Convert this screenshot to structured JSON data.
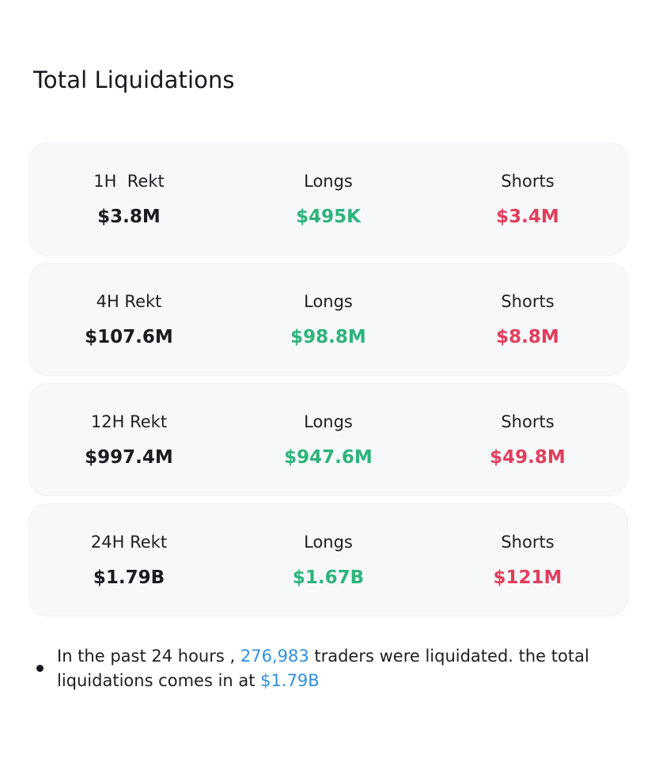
{
  "page": {
    "title": "Total Liquidations"
  },
  "cards": [
    {
      "rekt_label": "1H  Rekt",
      "rekt_value": "$3.8M",
      "longs_label": "Longs",
      "longs_value": "$495K",
      "shorts_label": "Shorts",
      "shorts_value": "$3.4M"
    },
    {
      "rekt_label": "4H Rekt",
      "rekt_value": "$107.6M",
      "longs_label": "Longs",
      "longs_value": "$98.8M",
      "shorts_label": "Shorts",
      "shorts_value": "$8.8M"
    },
    {
      "rekt_label": "12H Rekt",
      "rekt_value": "$997.4M",
      "longs_label": "Longs",
      "longs_value": "$947.6M",
      "shorts_label": "Shorts",
      "shorts_value": "$49.8M"
    },
    {
      "rekt_label": "24H Rekt",
      "rekt_value": "$1.79B",
      "longs_label": "Longs",
      "longs_value": "$1.67B",
      "shorts_label": "Shorts",
      "shorts_value": "$121M"
    }
  ],
  "summary": {
    "prefix": "In the past 24 hours , ",
    "traders_count": "276,983",
    "middle": " traders were liquidated. the total liquidations comes in at ",
    "total_amount": "$1.79B"
  },
  "colors": {
    "longs": "#2db47a",
    "shorts": "#e23e5c",
    "highlight": "#2f8fe0",
    "card_bg": "#f7f8fa"
  }
}
